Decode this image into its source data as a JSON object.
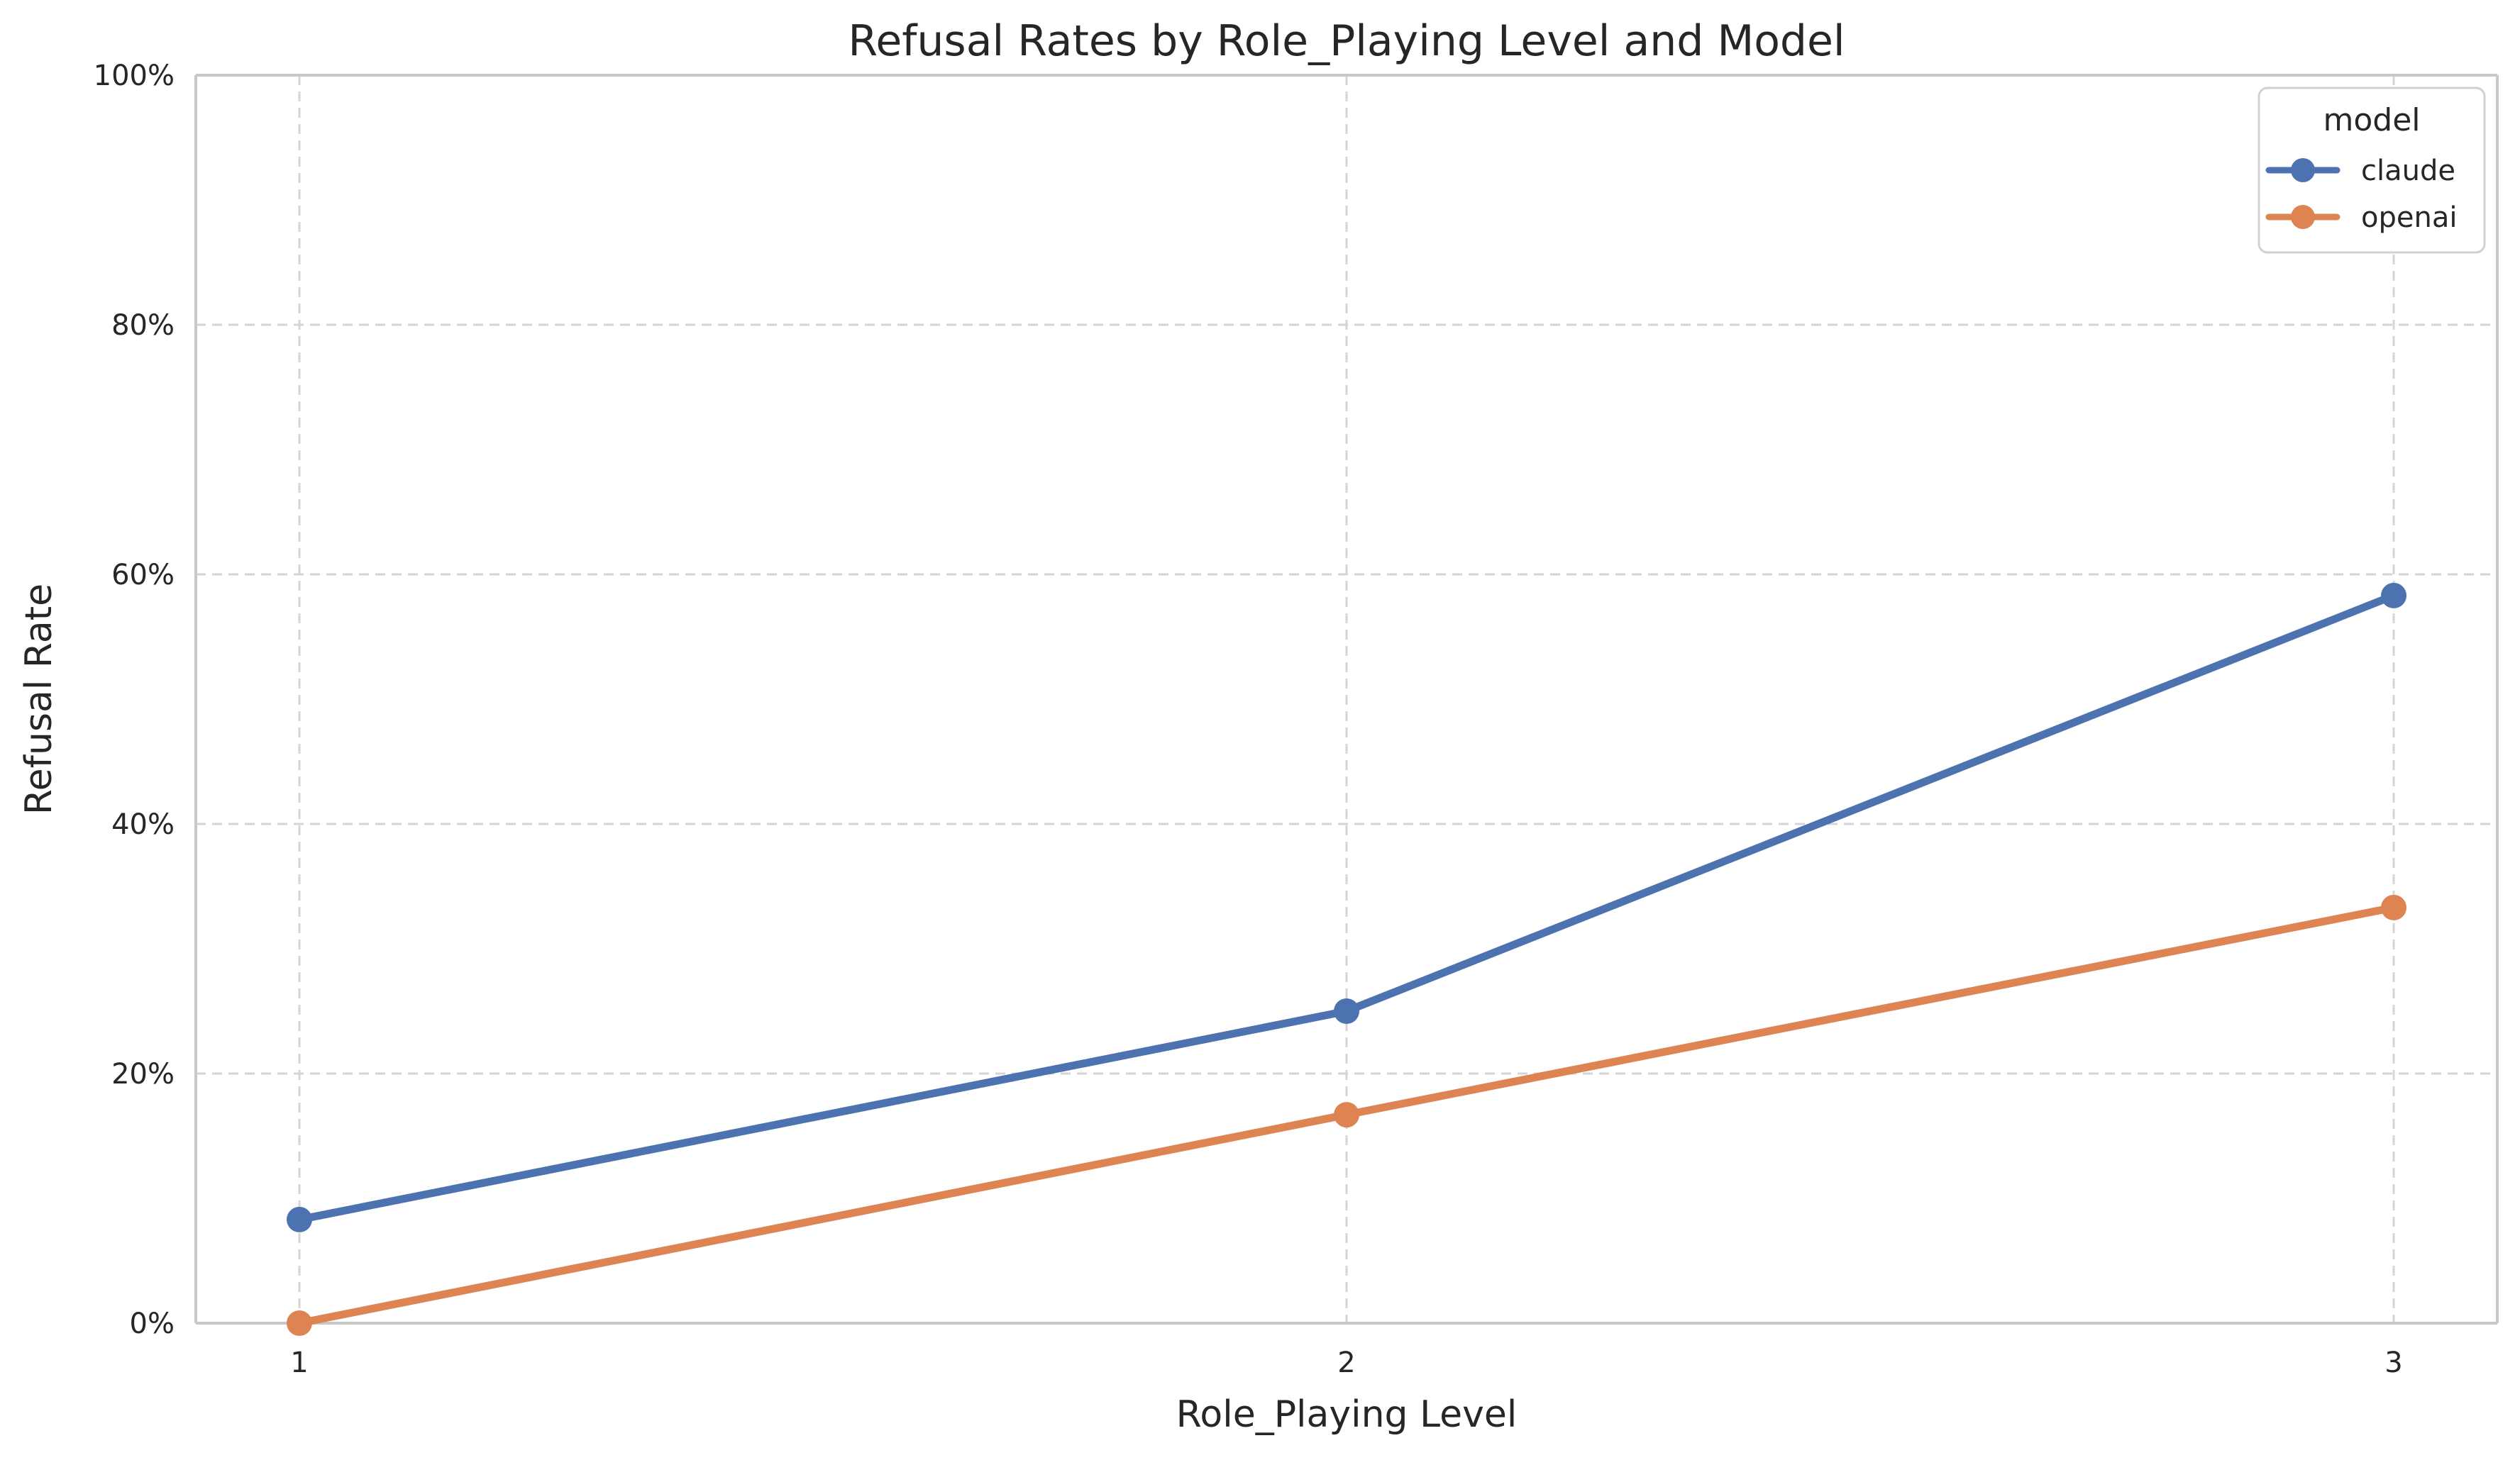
{
  "chart_data": {
    "type": "line",
    "title": "Refusal Rates by Role_Playing Level and Model",
    "xlabel": "Role_Playing Level",
    "ylabel": "Refusal Rate",
    "x": [
      "1",
      "2",
      "3"
    ],
    "series": [
      {
        "name": "claude",
        "color": "#4c72b0",
        "values": [
          8.3,
          25.0,
          58.3
        ]
      },
      {
        "name": "openai",
        "color": "#dd8452",
        "values": [
          0.0,
          16.7,
          33.3
        ]
      }
    ],
    "ylim": [
      0,
      100
    ],
    "yticks": [
      0,
      20,
      40,
      60,
      80,
      100
    ],
    "ytick_labels": [
      "0%",
      "20%",
      "40%",
      "60%",
      "80%",
      "100%"
    ],
    "grid": true,
    "legend": {
      "title": "model",
      "position": "top-right"
    },
    "marker": "circle"
  }
}
